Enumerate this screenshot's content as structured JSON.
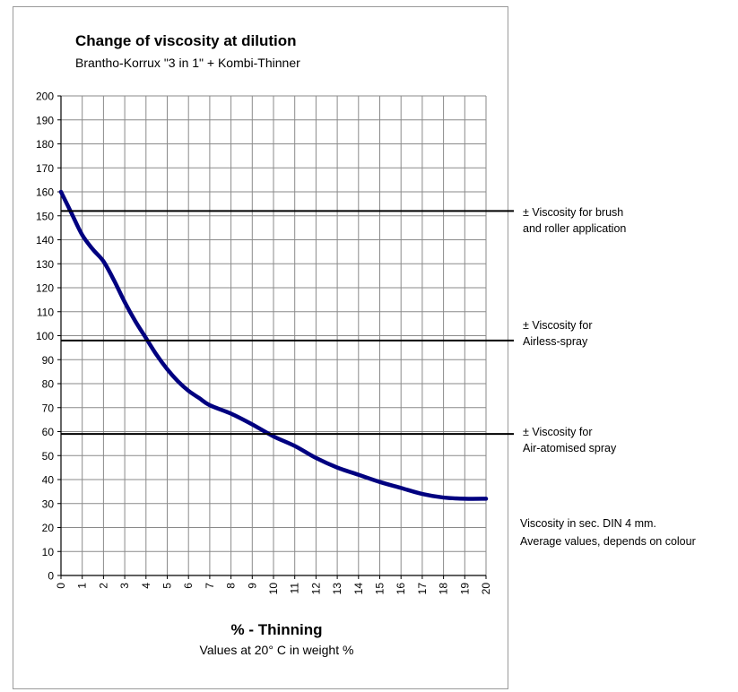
{
  "chart_data": {
    "type": "line",
    "title": "Change of viscosity at dilution",
    "subtitle": "Brantho-Korrux \"3 in 1\" + Kombi-Thinner",
    "xlabel": "% - Thinning",
    "xsublabel": "Values at 20° C in weight %",
    "ylabel": "",
    "xlim": [
      0,
      20
    ],
    "ylim": [
      0,
      200
    ],
    "x_ticks": [
      "0",
      "1",
      "2",
      "3",
      "4",
      "5",
      "6",
      "7",
      "8",
      "9",
      "10",
      "11",
      "12",
      "13",
      "14",
      "15",
      "16",
      "17",
      "18",
      "19",
      "20"
    ],
    "y_ticks": [
      "0",
      "10",
      "20",
      "30",
      "40",
      "50",
      "60",
      "70",
      "80",
      "90",
      "100",
      "110",
      "120",
      "130",
      "140",
      "150",
      "160",
      "170",
      "180",
      "190",
      "200"
    ],
    "grid": true,
    "series": [
      {
        "color": "#000080",
        "x": [
          0,
          0.5,
          1,
          1.5,
          2,
          2.5,
          3,
          3.5,
          4,
          4.5,
          5,
          5.5,
          6,
          6.5,
          7,
          8,
          9,
          10,
          11,
          12,
          13,
          14,
          15,
          16,
          17,
          18,
          19,
          20
        ],
        "y": [
          160,
          151,
          142,
          136,
          131,
          123,
          114,
          106,
          99,
          92,
          86,
          81,
          77,
          74,
          71,
          67.5,
          63,
          58,
          54,
          49,
          45,
          42,
          39,
          36.5,
          34,
          32.5,
          32,
          32
        ]
      }
    ],
    "reference_lines": [
      {
        "y": 152,
        "label": "± Viscosity for brush\nand roller application"
      },
      {
        "y": 98,
        "label": "± Viscosity for\nAirless-spray"
      },
      {
        "y": 59,
        "label": "± Viscosity for\nAir-atomised spray"
      }
    ],
    "note": [
      "Viscosity in sec. DIN 4 mm.",
      "Average values, depends on colour"
    ]
  }
}
